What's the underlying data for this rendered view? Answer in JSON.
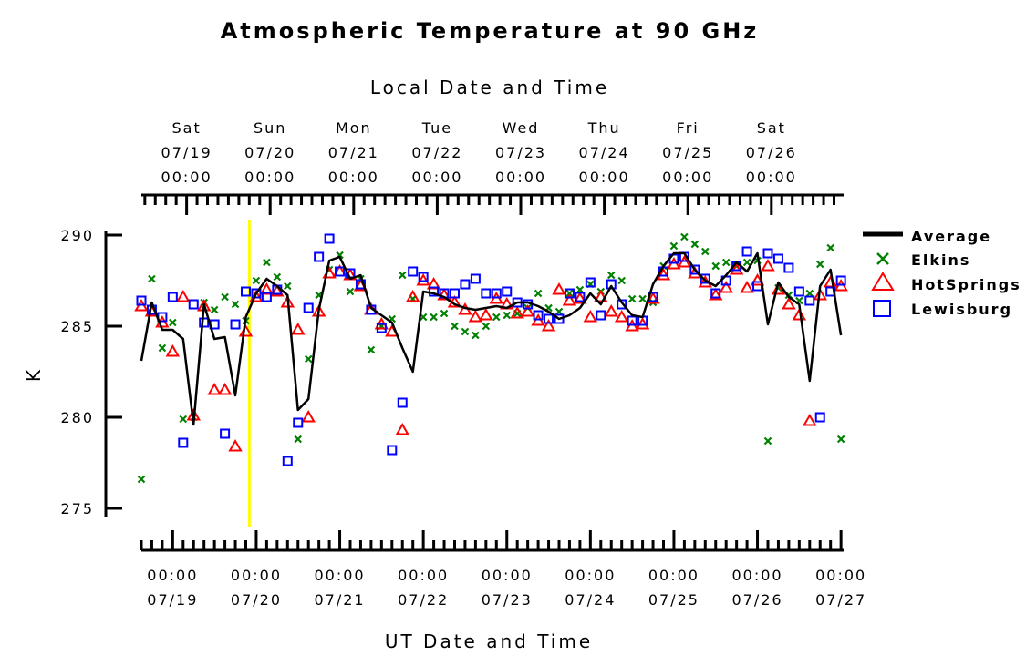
{
  "chart_data": {
    "type": "scatter",
    "title": "Atmospheric Temperature at 90 GHz",
    "top_axis_label": "Local Date and Time",
    "xlabel": "UT Date and Time",
    "ylabel": "K",
    "ylim": [
      274.5,
      290.2
    ],
    "y_ticks": [
      275,
      280,
      285,
      290
    ],
    "xlim": [
      "2014-07-18 15:00",
      "2014-07-27 00:45"
    ],
    "top_axis_ticks": [
      {
        "t": "2014-07-19 04:00",
        "day": "Sat",
        "date": "07/19",
        "time": "00:00"
      },
      {
        "t": "2014-07-20 04:00",
        "day": "Sun",
        "date": "07/20",
        "time": "00:00"
      },
      {
        "t": "2014-07-21 04:00",
        "day": "Mon",
        "date": "07/21",
        "time": "00:00"
      },
      {
        "t": "2014-07-22 04:00",
        "day": "Tue",
        "date": "07/22",
        "time": "00:00"
      },
      {
        "t": "2014-07-23 04:00",
        "day": "Wed",
        "date": "07/23",
        "time": "00:00"
      },
      {
        "t": "2014-07-24 04:00",
        "day": "Thu",
        "date": "07/24",
        "time": "00:00"
      },
      {
        "t": "2014-07-25 04:00",
        "day": "Fri",
        "date": "07/25",
        "time": "00:00"
      },
      {
        "t": "2014-07-26 04:00",
        "day": "Sat",
        "date": "07/26",
        "time": "00:00"
      }
    ],
    "bottom_axis_ticks": [
      {
        "t": "2014-07-19 00:00",
        "time": "00:00",
        "date": "07/19"
      },
      {
        "t": "2014-07-20 00:00",
        "time": "00:00",
        "date": "07/20"
      },
      {
        "t": "2014-07-21 00:00",
        "time": "00:00",
        "date": "07/21"
      },
      {
        "t": "2014-07-22 00:00",
        "time": "00:00",
        "date": "07/22"
      },
      {
        "t": "2014-07-23 00:00",
        "time": "00:00",
        "date": "07/23"
      },
      {
        "t": "2014-07-24 00:00",
        "time": "00:00",
        "date": "07/24"
      },
      {
        "t": "2014-07-25 00:00",
        "time": "00:00",
        "date": "07/25"
      },
      {
        "t": "2014-07-26 00:00",
        "time": "00:00",
        "date": "07/26"
      },
      {
        "t": "2014-07-27 00:00",
        "time": "00:00",
        "date": "07/27"
      }
    ],
    "marker_line": {
      "t": "2014-07-19 22:00",
      "color": "#ffff00"
    },
    "legend_position": "right",
    "series": [
      {
        "name": "Average",
        "kind": "line",
        "color": "#000000",
        "x": [
          "2014-07-18 15:00",
          "2014-07-18 18:00",
          "2014-07-18 21:00",
          "2014-07-19 00:00",
          "2014-07-19 03:00",
          "2014-07-19 06:00",
          "2014-07-19 09:00",
          "2014-07-19 12:00",
          "2014-07-19 15:00",
          "2014-07-19 18:00",
          "2014-07-19 21:00",
          "2014-07-20 00:00",
          "2014-07-20 03:00",
          "2014-07-20 06:00",
          "2014-07-20 09:00",
          "2014-07-20 12:00",
          "2014-07-20 15:00",
          "2014-07-20 18:00",
          "2014-07-20 21:00",
          "2014-07-21 00:00",
          "2014-07-21 03:00",
          "2014-07-21 06:00",
          "2014-07-21 09:00",
          "2014-07-21 12:00",
          "2014-07-21 15:00",
          "2014-07-21 18:00",
          "2014-07-21 21:00",
          "2014-07-22 00:00",
          "2014-07-22 03:00",
          "2014-07-22 06:00",
          "2014-07-22 09:00",
          "2014-07-22 12:00",
          "2014-07-22 15:00",
          "2014-07-22 18:00",
          "2014-07-22 21:00",
          "2014-07-23 00:00",
          "2014-07-23 03:00",
          "2014-07-23 06:00",
          "2014-07-23 09:00",
          "2014-07-23 12:00",
          "2014-07-23 15:00",
          "2014-07-23 18:00",
          "2014-07-23 21:00",
          "2014-07-24 00:00",
          "2014-07-24 03:00",
          "2014-07-24 06:00",
          "2014-07-24 09:00",
          "2014-07-24 12:00",
          "2014-07-24 15:00",
          "2014-07-24 18:00",
          "2014-07-24 21:00",
          "2014-07-25 00:00",
          "2014-07-25 03:00",
          "2014-07-25 06:00",
          "2014-07-25 09:00",
          "2014-07-25 12:00",
          "2014-07-25 15:00",
          "2014-07-25 18:00",
          "2014-07-25 21:00",
          "2014-07-26 00:00",
          "2014-07-26 03:00",
          "2014-07-26 06:00",
          "2014-07-26 09:00",
          "2014-07-26 12:00",
          "2014-07-26 15:00",
          "2014-07-26 18:00",
          "2014-07-26 21:00",
          "2014-07-27 00:00"
        ],
        "y": [
          283.1,
          286.3,
          284.8,
          284.8,
          284.3,
          279.6,
          286.2,
          284.3,
          284.4,
          281.2,
          285.5,
          286.8,
          287.6,
          287.2,
          286.7,
          280.4,
          281.0,
          285.9,
          288.6,
          288.8,
          287.6,
          287.8,
          286.0,
          285.6,
          285.2,
          283.8,
          282.5,
          286.9,
          286.8,
          286.6,
          286.2,
          286.0,
          285.9,
          286.0,
          286.1,
          286.0,
          286.3,
          286.3,
          286.1,
          285.8,
          285.4,
          285.6,
          286.0,
          286.8,
          286.2,
          287.2,
          286.3,
          285.6,
          285.5,
          287.3,
          288.3,
          289.0,
          289.0,
          288.1,
          287.5,
          287.2,
          287.8,
          288.5,
          288.0,
          289.0,
          285.1,
          287.4,
          286.6,
          286.2,
          282.0,
          287.2,
          288.1,
          284.5
        ]
      },
      {
        "name": "Elkins",
        "kind": "x-marker",
        "color": "#008000",
        "x": [
          "2014-07-18 15:00",
          "2014-07-18 18:00",
          "2014-07-18 21:00",
          "2014-07-19 00:00",
          "2014-07-19 03:00",
          "2014-07-19 06:00",
          "2014-07-19 09:00",
          "2014-07-19 12:00",
          "2014-07-19 15:00",
          "2014-07-19 18:00",
          "2014-07-19 21:00",
          "2014-07-20 00:00",
          "2014-07-20 03:00",
          "2014-07-20 06:00",
          "2014-07-20 09:00",
          "2014-07-20 12:00",
          "2014-07-20 15:00",
          "2014-07-20 18:00",
          "2014-07-20 21:00",
          "2014-07-21 00:00",
          "2014-07-21 03:00",
          "2014-07-21 06:00",
          "2014-07-21 09:00",
          "2014-07-21 12:00",
          "2014-07-21 15:00",
          "2014-07-21 18:00",
          "2014-07-21 21:00",
          "2014-07-22 00:00",
          "2014-07-22 03:00",
          "2014-07-22 06:00",
          "2014-07-22 09:00",
          "2014-07-22 12:00",
          "2014-07-22 15:00",
          "2014-07-22 18:00",
          "2014-07-22 21:00",
          "2014-07-23 00:00",
          "2014-07-23 03:00",
          "2014-07-23 06:00",
          "2014-07-23 09:00",
          "2014-07-23 12:00",
          "2014-07-23 15:00",
          "2014-07-23 18:00",
          "2014-07-23 21:00",
          "2014-07-24 00:00",
          "2014-07-24 03:00",
          "2014-07-24 06:00",
          "2014-07-24 09:00",
          "2014-07-24 12:00",
          "2014-07-24 15:00",
          "2014-07-24 18:00",
          "2014-07-24 21:00",
          "2014-07-25 00:00",
          "2014-07-25 03:00",
          "2014-07-25 06:00",
          "2014-07-25 09:00",
          "2014-07-25 12:00",
          "2014-07-25 15:00",
          "2014-07-25 18:00",
          "2014-07-25 21:00",
          "2014-07-26 00:00",
          "2014-07-26 03:00",
          "2014-07-26 06:00",
          "2014-07-26 09:00",
          "2014-07-26 12:00",
          "2014-07-26 15:00",
          "2014-07-26 18:00",
          "2014-07-26 21:00",
          "2014-07-27 00:00"
        ],
        "y": [
          276.6,
          287.6,
          283.8,
          285.2,
          279.9,
          280.0,
          286.3,
          285.9,
          286.6,
          286.2,
          285.3,
          287.5,
          288.5,
          287.7,
          287.2,
          278.8,
          283.2,
          286.7,
          288.1,
          288.9,
          286.9,
          287.6,
          283.7,
          285.0,
          285.4,
          287.8,
          286.5,
          285.5,
          285.5,
          285.7,
          285.0,
          284.7,
          284.5,
          285.0,
          285.5,
          285.6,
          285.7,
          286.0,
          286.8,
          286.0,
          285.8,
          286.8,
          287.0,
          287.3,
          286.9,
          287.8,
          287.5,
          286.5,
          286.5,
          286.3,
          288.3,
          289.4,
          289.9,
          289.5,
          289.1,
          288.3,
          288.5,
          288.3,
          288.5,
          288.6,
          278.7,
          287.1,
          286.7,
          286.4,
          286.8,
          288.4,
          289.3,
          278.8
        ]
      },
      {
        "name": "HotSprings",
        "kind": "triangle",
        "color": "#ff0000",
        "x": [
          "2014-07-18 15:00",
          "2014-07-18 18:00",
          "2014-07-18 21:00",
          "2014-07-19 00:00",
          "2014-07-19 03:00",
          "2014-07-19 06:00",
          "2014-07-19 09:00",
          "2014-07-19 12:00",
          "2014-07-19 15:00",
          "2014-07-19 18:00",
          "2014-07-19 21:00",
          "2014-07-20 00:00",
          "2014-07-20 03:00",
          "2014-07-20 06:00",
          "2014-07-20 09:00",
          "2014-07-20 12:00",
          "2014-07-20 15:00",
          "2014-07-20 18:00",
          "2014-07-20 21:00",
          "2014-07-21 00:00",
          "2014-07-21 03:00",
          "2014-07-21 06:00",
          "2014-07-21 09:00",
          "2014-07-21 12:00",
          "2014-07-21 15:00",
          "2014-07-21 18:00",
          "2014-07-21 21:00",
          "2014-07-22 00:00",
          "2014-07-22 03:00",
          "2014-07-22 06:00",
          "2014-07-22 09:00",
          "2014-07-22 12:00",
          "2014-07-22 15:00",
          "2014-07-22 18:00",
          "2014-07-22 21:00",
          "2014-07-23 00:00",
          "2014-07-23 03:00",
          "2014-07-23 06:00",
          "2014-07-23 09:00",
          "2014-07-23 12:00",
          "2014-07-23 15:00",
          "2014-07-23 18:00",
          "2014-07-23 21:00",
          "2014-07-24 00:00",
          "2014-07-24 03:00",
          "2014-07-24 06:00",
          "2014-07-24 09:00",
          "2014-07-24 12:00",
          "2014-07-24 15:00",
          "2014-07-24 18:00",
          "2014-07-24 21:00",
          "2014-07-25 00:00",
          "2014-07-25 03:00",
          "2014-07-25 06:00",
          "2014-07-25 09:00",
          "2014-07-25 12:00",
          "2014-07-25 15:00",
          "2014-07-25 18:00",
          "2014-07-25 21:00",
          "2014-07-26 00:00",
          "2014-07-26 03:00",
          "2014-07-26 06:00",
          "2014-07-26 09:00",
          "2014-07-26 12:00",
          "2014-07-26 15:00",
          "2014-07-26 18:00",
          "2014-07-26 21:00",
          "2014-07-27 00:00"
        ],
        "y": [
          286.1,
          285.8,
          285.2,
          283.6,
          286.6,
          280.1,
          286.1,
          281.5,
          281.5,
          278.4,
          284.7,
          286.6,
          287.0,
          286.9,
          286.3,
          284.8,
          280.0,
          285.8,
          287.9,
          288.0,
          287.8,
          287.2,
          285.9,
          285.1,
          284.7,
          279.3,
          286.6,
          287.5,
          287.3,
          286.7,
          286.3,
          285.9,
          285.5,
          285.6,
          286.5,
          286.2,
          285.7,
          285.8,
          285.3,
          285.0,
          287.0,
          286.4,
          286.5,
          285.5,
          286.6,
          285.8,
          285.5,
          285.0,
          285.1,
          286.5,
          287.8,
          288.4,
          288.5,
          287.9,
          287.4,
          286.7,
          287.1,
          288.1,
          287.1,
          287.5,
          288.3,
          287.0,
          286.2,
          285.6,
          279.8,
          286.7,
          287.4,
          287.2
        ]
      },
      {
        "name": "Lewisburg",
        "kind": "square",
        "color": "#0000ff",
        "x": [
          "2014-07-18 15:00",
          "2014-07-18 18:00",
          "2014-07-18 21:00",
          "2014-07-19 00:00",
          "2014-07-19 03:00",
          "2014-07-19 06:00",
          "2014-07-19 09:00",
          "2014-07-19 12:00",
          "2014-07-19 15:00",
          "2014-07-19 18:00",
          "2014-07-19 21:00",
          "2014-07-20 00:00",
          "2014-07-20 03:00",
          "2014-07-20 06:00",
          "2014-07-20 09:00",
          "2014-07-20 12:00",
          "2014-07-20 15:00",
          "2014-07-20 18:00",
          "2014-07-20 21:00",
          "2014-07-21 00:00",
          "2014-07-21 03:00",
          "2014-07-21 06:00",
          "2014-07-21 09:00",
          "2014-07-21 12:00",
          "2014-07-21 15:00",
          "2014-07-21 18:00",
          "2014-07-21 21:00",
          "2014-07-22 00:00",
          "2014-07-22 03:00",
          "2014-07-22 06:00",
          "2014-07-22 09:00",
          "2014-07-22 12:00",
          "2014-07-22 15:00",
          "2014-07-22 18:00",
          "2014-07-22 21:00",
          "2014-07-23 00:00",
          "2014-07-23 03:00",
          "2014-07-23 06:00",
          "2014-07-23 09:00",
          "2014-07-23 12:00",
          "2014-07-23 15:00",
          "2014-07-23 18:00",
          "2014-07-23 21:00",
          "2014-07-24 00:00",
          "2014-07-24 03:00",
          "2014-07-24 06:00",
          "2014-07-24 09:00",
          "2014-07-24 12:00",
          "2014-07-24 15:00",
          "2014-07-24 18:00",
          "2014-07-24 21:00",
          "2014-07-25 00:00",
          "2014-07-25 03:00",
          "2014-07-25 06:00",
          "2014-07-25 09:00",
          "2014-07-25 12:00",
          "2014-07-25 15:00",
          "2014-07-25 18:00",
          "2014-07-25 21:00",
          "2014-07-26 00:00",
          "2014-07-26 03:00",
          "2014-07-26 06:00",
          "2014-07-26 09:00",
          "2014-07-26 12:00",
          "2014-07-26 15:00",
          "2014-07-26 18:00",
          "2014-07-26 21:00",
          "2014-07-27 00:00"
        ],
        "y": [
          286.4,
          285.9,
          285.5,
          286.6,
          278.6,
          286.2,
          285.2,
          285.1,
          279.1,
          285.1,
          286.9,
          286.8,
          286.6,
          287.0,
          277.6,
          279.7,
          286.0,
          288.8,
          289.8,
          288.0,
          287.9,
          287.3,
          285.9,
          284.9,
          278.2,
          280.8,
          288.0,
          287.7,
          286.9,
          286.8,
          286.8,
          287.3,
          287.6,
          286.8,
          286.8,
          286.9,
          286.3,
          286.2,
          285.6,
          285.4,
          285.4,
          286.8,
          286.6,
          287.4,
          285.6,
          287.3,
          286.2,
          285.3,
          285.3,
          286.6,
          288.0,
          288.7,
          288.8,
          288.1,
          287.6,
          286.8,
          287.5,
          288.3,
          289.1,
          287.2,
          289.0,
          288.7,
          288.2,
          286.9,
          286.4,
          280.0,
          286.9,
          287.5
        ]
      }
    ]
  }
}
